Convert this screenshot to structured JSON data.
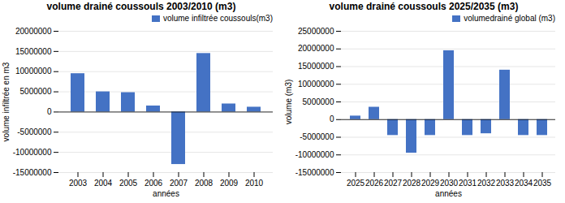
{
  "chart_data": [
    {
      "type": "bar",
      "title": "volume drainé coussouls 2003/2010 (m3)",
      "xlabel": "années",
      "ylabel": "volume infiltrée en m3",
      "categories": [
        "2003",
        "2004",
        "2005",
        "2006",
        "2007",
        "2008",
        "2009",
        "2010"
      ],
      "series": [
        {
          "name": "volume infiltrée coussouls(m3)",
          "color": "#4472C4",
          "values": [
            9500000,
            5000000,
            4800000,
            1500000,
            -13000000,
            14500000,
            2000000,
            1200000
          ]
        }
      ],
      "ylim": [
        -15000000,
        20000000
      ],
      "yticks": [
        -15000000,
        -10000000,
        -5000000,
        0,
        5000000,
        10000000,
        15000000,
        20000000
      ],
      "grid": "y",
      "legend": "upper right"
    },
    {
      "type": "bar",
      "title": "volume drainé coussouls 2025/2035 (m3)",
      "xlabel": "années",
      "ylabel": "volume (m3)",
      "categories": [
        "2025",
        "2026",
        "2027",
        "2028",
        "2029",
        "2030",
        "2031",
        "2032",
        "2033",
        "2034",
        "2035"
      ],
      "series": [
        {
          "name": "volumedrainé global (m3)",
          "color": "#4472C4",
          "values": [
            1000000,
            3500000,
            -4500000,
            -9500000,
            -4500000,
            19500000,
            -4500000,
            -4000000,
            14000000,
            -4500000,
            -4500000
          ]
        }
      ],
      "ylim": [
        -15000000,
        25000000
      ],
      "yticks": [
        -15000000,
        -10000000,
        -5000000,
        0,
        5000000,
        10000000,
        15000000,
        20000000,
        25000000
      ],
      "grid": "y",
      "legend": "upper right"
    }
  ]
}
